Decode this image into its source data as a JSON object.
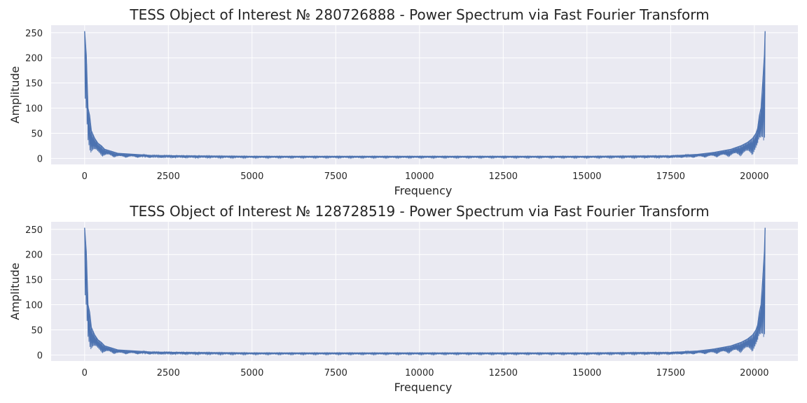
{
  "chart_data": [
    {
      "type": "line",
      "title": "TESS Object of Interest № 280726888 - Power Spectrum via Fast Fourier Transform",
      "xlabel": "Frequency",
      "ylabel": "Amplitude",
      "xlim": [
        -1000,
        21300
      ],
      "ylim": [
        -12,
        265
      ],
      "x_ticks": [
        0,
        2500,
        5000,
        7500,
        10000,
        12500,
        15000,
        17500,
        20000
      ],
      "x_tick_labels": [
        "0",
        "2500",
        "5000",
        "7500",
        "10000",
        "12500",
        "15000",
        "17500",
        "20000"
      ],
      "y_ticks": [
        0,
        50,
        100,
        150,
        200,
        250
      ],
      "y_tick_labels": [
        "0",
        "50",
        "100",
        "150",
        "200",
        "250"
      ],
      "grid": true,
      "background": "#eaeaf2",
      "line_color": "#4c72b0",
      "series": [
        {
          "x": [
            0,
            50,
            100,
            150,
            200,
            300,
            400,
            500,
            600,
            800,
            1000,
            1500,
            2000,
            3000,
            5000,
            7500,
            10000,
            10300,
            12500,
            15000,
            17500,
            18300,
            18800,
            19300,
            19600,
            19800,
            19950,
            20050,
            20100,
            20150,
            20200,
            20250,
            20300,
            20320
          ],
          "y": [
            253,
            205,
            100,
            85,
            55,
            40,
            30,
            25,
            18,
            14,
            10,
            8,
            6,
            5,
            4,
            4,
            4,
            4,
            4,
            4,
            5,
            8,
            12,
            18,
            25,
            32,
            40,
            50,
            60,
            85,
            100,
            150,
            205,
            253
          ]
        }
      ]
    },
    {
      "type": "line",
      "title": "TESS Object of Interest № 128728519 - Power Spectrum via Fast Fourier Transform",
      "xlabel": "Frequency",
      "ylabel": "Amplitude",
      "xlim": [
        -1000,
        21300
      ],
      "ylim": [
        -12,
        265
      ],
      "x_ticks": [
        0,
        2500,
        5000,
        7500,
        10000,
        12500,
        15000,
        17500,
        20000
      ],
      "x_tick_labels": [
        "0",
        "2500",
        "5000",
        "7500",
        "10000",
        "12500",
        "15000",
        "17500",
        "20000"
      ],
      "y_ticks": [
        0,
        50,
        100,
        150,
        200,
        250
      ],
      "y_tick_labels": [
        "0",
        "50",
        "100",
        "150",
        "200",
        "250"
      ],
      "grid": true,
      "background": "#eaeaf2",
      "line_color": "#4c72b0",
      "series": [
        {
          "x": [
            0,
            50,
            100,
            150,
            200,
            300,
            400,
            500,
            600,
            800,
            1000,
            1500,
            2000,
            3000,
            5000,
            7500,
            10000,
            10300,
            12500,
            15000,
            17500,
            18300,
            18800,
            19300,
            19600,
            19800,
            19950,
            20050,
            20100,
            20150,
            20200,
            20250,
            20300,
            20320
          ],
          "y": [
            253,
            205,
            100,
            85,
            55,
            40,
            30,
            25,
            18,
            14,
            10,
            8,
            6,
            5,
            4,
            4,
            4,
            4,
            4,
            4,
            5,
            8,
            12,
            18,
            25,
            32,
            40,
            50,
            60,
            85,
            100,
            150,
            205,
            253
          ]
        }
      ]
    }
  ]
}
